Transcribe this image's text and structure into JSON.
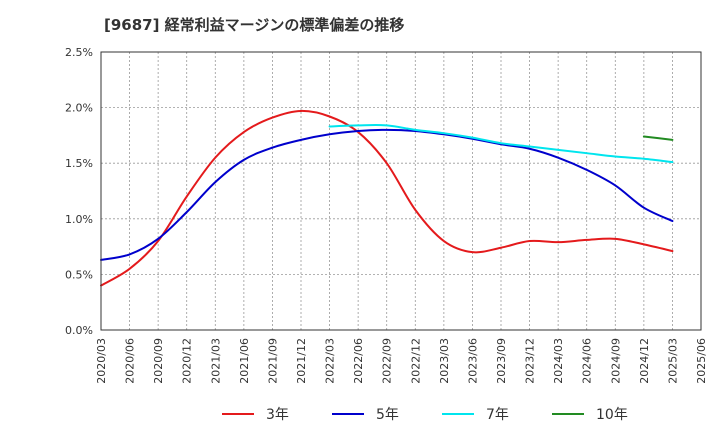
{
  "chart_data": {
    "type": "line",
    "title": "[9687]  経常利益マージンの標準偏差の推移",
    "xlabel": "",
    "ylabel": "",
    "x_ticks": [
      "2020/03",
      "2020/06",
      "2020/09",
      "2020/12",
      "2021/03",
      "2021/06",
      "2021/09",
      "2021/12",
      "2022/03",
      "2022/06",
      "2022/09",
      "2022/12",
      "2023/03",
      "2023/06",
      "2023/09",
      "2023/12",
      "2024/03",
      "2024/06",
      "2024/09",
      "2024/12",
      "2025/03",
      "2025/06"
    ],
    "y_ticks": [
      "0.0%",
      "0.5%",
      "1.0%",
      "1.5%",
      "2.0%",
      "2.5%"
    ],
    "ylim": [
      0,
      2.5
    ],
    "y_unit": "%",
    "grid": "dotted",
    "legend_position": "bottom",
    "series": [
      {
        "name": "3年",
        "color": "#e41a1c",
        "x": [
          "2020/03",
          "2020/06",
          "2020/09",
          "2020/12",
          "2021/03",
          "2021/06",
          "2021/09",
          "2021/12",
          "2022/03",
          "2022/06",
          "2022/09",
          "2022/12",
          "2023/03",
          "2023/06",
          "2023/09",
          "2023/12",
          "2024/03",
          "2024/06",
          "2024/09",
          "2024/12",
          "2025/03"
        ],
        "values": [
          0.4,
          0.55,
          0.8,
          1.2,
          1.55,
          1.78,
          1.91,
          1.97,
          1.92,
          1.78,
          1.5,
          1.08,
          0.8,
          0.7,
          0.74,
          0.8,
          0.79,
          0.81,
          0.82,
          0.77,
          0.71
        ]
      },
      {
        "name": "5年",
        "color": "#0000cc",
        "x": [
          "2020/03",
          "2020/06",
          "2020/09",
          "2020/12",
          "2021/03",
          "2021/06",
          "2021/09",
          "2021/12",
          "2022/03",
          "2022/06",
          "2022/09",
          "2022/12",
          "2023/03",
          "2023/06",
          "2023/09",
          "2023/12",
          "2024/03",
          "2024/06",
          "2024/09",
          "2024/12",
          "2025/03"
        ],
        "values": [
          0.63,
          0.68,
          0.82,
          1.06,
          1.33,
          1.53,
          1.64,
          1.71,
          1.76,
          1.79,
          1.8,
          1.79,
          1.76,
          1.72,
          1.67,
          1.63,
          1.55,
          1.44,
          1.3,
          1.1,
          0.98
        ]
      },
      {
        "name": "7年",
        "color": "#00e5ee",
        "x": [
          "2022/03",
          "2022/06",
          "2022/09",
          "2022/12",
          "2023/03",
          "2023/06",
          "2023/09",
          "2023/12",
          "2024/03",
          "2024/06",
          "2024/09",
          "2024/12",
          "2025/03"
        ],
        "values": [
          1.83,
          1.84,
          1.84,
          1.8,
          1.77,
          1.73,
          1.68,
          1.65,
          1.62,
          1.59,
          1.56,
          1.54,
          1.51
        ]
      },
      {
        "name": "10年",
        "color": "#228b22",
        "x": [
          "2024/12",
          "2025/03"
        ],
        "values": [
          1.74,
          1.71
        ]
      }
    ]
  }
}
